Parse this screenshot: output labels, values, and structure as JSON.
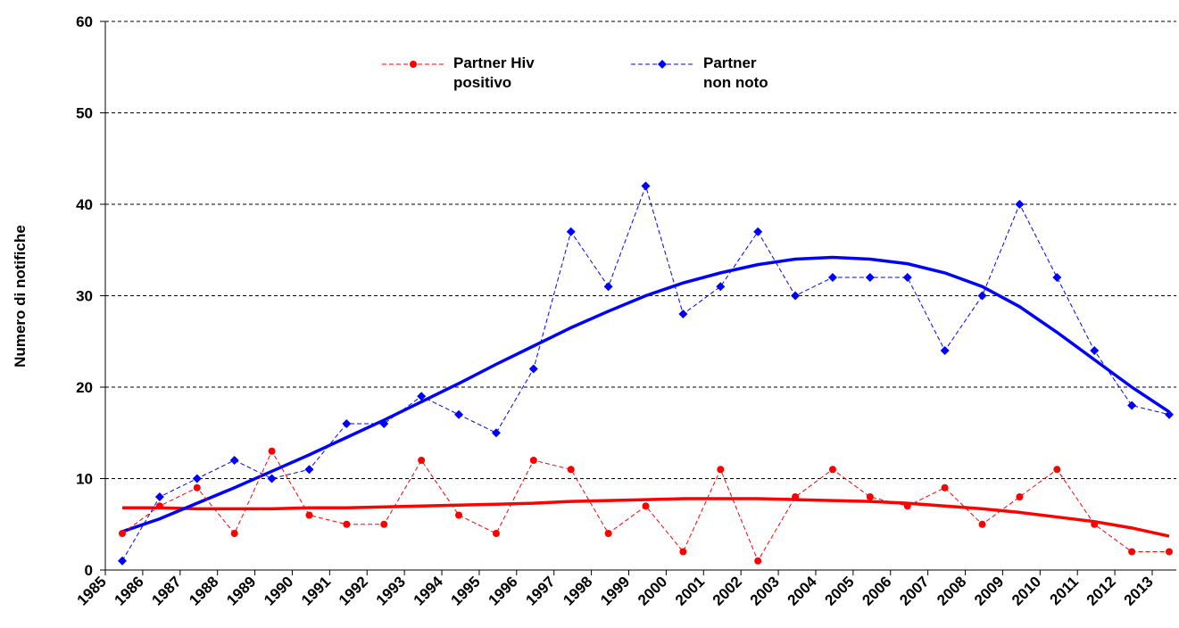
{
  "chart_data": {
    "type": "line",
    "y_label": "Numero di notifiche",
    "categories": [
      "1985",
      "1986",
      "1987",
      "1988",
      "1989",
      "1990",
      "1991",
      "1992",
      "1993",
      "1994",
      "1995",
      "1996",
      "1997",
      "1998",
      "1999",
      "2000",
      "2001",
      "2002",
      "2003",
      "2004",
      "2005",
      "2006",
      "2007",
      "2008",
      "2009",
      "2010",
      "2011",
      "2012",
      "2013"
    ],
    "series": [
      {
        "name": "Partner Hiv positivo",
        "color": "#ff0000",
        "marker": "circle",
        "values": [
          4,
          7,
          9,
          4,
          13,
          6,
          5,
          5,
          12,
          6,
          4,
          12,
          11,
          4,
          7,
          2,
          11,
          1,
          8,
          11,
          8,
          7,
          9,
          5,
          8,
          11,
          5,
          2,
          2
        ]
      },
      {
        "name": "Partner non noto",
        "color": "#0000ff",
        "marker": "diamond",
        "values": [
          1,
          8,
          10,
          12,
          10,
          11,
          16,
          16,
          19,
          17,
          15,
          22,
          37,
          31,
          42,
          28,
          31,
          37,
          30,
          32,
          32,
          32,
          24,
          30,
          40,
          32,
          24,
          18,
          17
        ]
      }
    ],
    "trendlines": [
      {
        "color": "#ff0000",
        "values": [
          6.8,
          6.8,
          6.7,
          6.7,
          6.7,
          6.8,
          6.8,
          6.9,
          7.0,
          7.1,
          7.2,
          7.3,
          7.5,
          7.6,
          7.7,
          7.8,
          7.8,
          7.8,
          7.7,
          7.6,
          7.5,
          7.3,
          7.0,
          6.7,
          6.3,
          5.8,
          5.3,
          4.6,
          3.7
        ]
      },
      {
        "color": "#0000ff",
        "values": [
          4.2,
          5.6,
          7.3,
          9.0,
          10.8,
          12.6,
          14.5,
          16.4,
          18.4,
          20.4,
          22.5,
          24.5,
          26.5,
          28.3,
          30.0,
          31.4,
          32.5,
          33.4,
          34.0,
          34.2,
          34.0,
          33.5,
          32.5,
          31.0,
          28.8,
          26.0,
          23.0,
          20.0,
          17.3
        ]
      }
    ],
    "ylim": [
      0,
      60
    ],
    "yticks": [
      0,
      10,
      20,
      30,
      40,
      50,
      60
    ],
    "grid": true
  }
}
